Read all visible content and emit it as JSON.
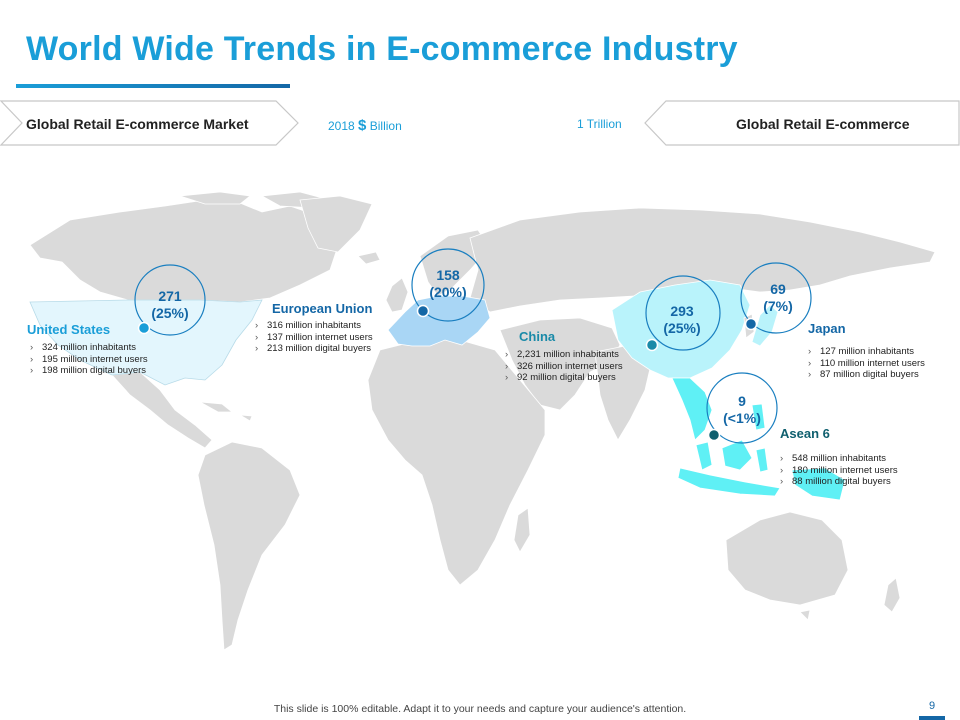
{
  "title": "World Wide Trends in E-commerce Industry",
  "banner_left": "Global Retail E-commerce Market",
  "banner_right": "Global Retail E-commerce",
  "mid_left": {
    "year": "2018",
    "currency": "$",
    "unit": "Billion"
  },
  "mid_right": "1 Trillion",
  "regions": {
    "us": {
      "name": "United States",
      "value": "271",
      "share": "(25%)",
      "stats": [
        "324 million  inhabitants",
        "195 million  internet users",
        "198 million  digital buyers"
      ]
    },
    "eu": {
      "name": "European Union",
      "value": "158",
      "share": "(20%)",
      "stats": [
        "316 million  inhabitants",
        "137 million  internet users",
        "213 million  digital buyers"
      ]
    },
    "china": {
      "name": "China",
      "value": "293",
      "share": "(25%)",
      "stats": [
        "2,231 million  inhabitants",
        "326 million  internet users",
        "92 million  digital buyers"
      ]
    },
    "japan": {
      "name": "Japan",
      "value": "69",
      "share": "(7%)",
      "stats": [
        "127 million  inhabitants",
        "110 million  internet users",
        "87 million  digital buyers"
      ]
    },
    "asean": {
      "name": "Asean 6",
      "value": "9",
      "share": "(<1%)",
      "stats": [
        "548 million  inhabitants",
        "180 million  internet users",
        "88 million  digital buyers"
      ]
    }
  },
  "bullet_glyph": "›",
  "footer": "This slide is 100% editable. Adapt it to your needs and capture your audience's attention.",
  "page_number": "9",
  "colors": {
    "accent": "#1a9ed8",
    "dark_accent": "#1467a6",
    "land": "#dadada",
    "us_fill": "#e3f6fd",
    "eu_fill": "#a9d6f5",
    "china_fill": "#b9f3fb",
    "asean_fill": "#5ff0f5",
    "teal_name": "#1a8aa8"
  }
}
